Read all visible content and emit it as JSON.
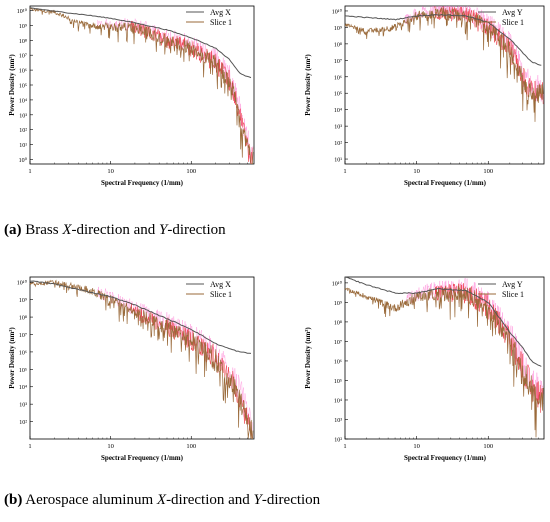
{
  "colors": {
    "avg": "#555555",
    "slice": "#9a6a3a",
    "noise": "#e8202a",
    "pink": "#ff66cc"
  },
  "panels": [
    {
      "id": "a-x",
      "ylabel": "Power Density (nm³)",
      "xlabel": "Spectral Frequency (1/mm)",
      "legend": [
        "Avg X",
        "Slice 1"
      ],
      "yticks": [
        "10⁰",
        "10¹",
        "10²",
        "10³",
        "10⁴",
        "10⁵",
        "10⁶",
        "10⁷",
        "10⁸",
        "10⁹",
        "10¹⁰"
      ],
      "xticks": [
        "1",
        "10",
        "100"
      ]
    },
    {
      "id": "a-y",
      "ylabel": "Power Density (nm³)",
      "xlabel": "Spectral Frequency (1/mm)",
      "legend": [
        "Avg Y",
        "Slice 1"
      ],
      "yticks": [
        "10¹",
        "10²",
        "10³",
        "10⁴",
        "10⁵",
        "10⁶",
        "10⁷",
        "10⁸",
        "10⁹",
        "10¹⁰"
      ],
      "xticks": [
        "1",
        "10",
        "100"
      ]
    },
    {
      "id": "b-x",
      "ylabel": "Power Density (nm³)",
      "xlabel": "Spectral Frequency (1/mm)",
      "legend": [
        "Avg X",
        "Slice 1"
      ],
      "yticks": [
        "10²",
        "10³",
        "10⁴",
        "10⁵",
        "10⁶",
        "10⁷",
        "10⁸",
        "10⁹",
        "10¹⁰"
      ],
      "xticks": [
        "1",
        "10",
        "100"
      ]
    },
    {
      "id": "b-y",
      "ylabel": "Power Density (nm³)",
      "xlabel": "Spectral Frequency (1/mm)",
      "legend": [
        "Avg Y",
        "Slice 1"
      ],
      "yticks": [
        "10²",
        "10³",
        "10⁴",
        "10⁵",
        "10⁶",
        "10⁷",
        "10⁸",
        "10⁹",
        "10¹⁰"
      ],
      "xticks": [
        "1",
        "10",
        "100"
      ]
    }
  ],
  "captions": {
    "a": {
      "label": "(a)",
      "text1": " Brass ",
      "x": "X",
      "text2": "-direction and ",
      "y": "Y",
      "text3": "-direction"
    },
    "b": {
      "label": "(b)",
      "text1": " Aerospace aluminum ",
      "x": "X",
      "text2": "-direction and ",
      "y": "Y",
      "text3": "-direction"
    }
  },
  "chart_data": [
    {
      "type": "line",
      "xscale": "log",
      "yscale": "log",
      "xlim": [
        1,
        600
      ],
      "ylim": [
        0.5,
        20000000000.0
      ],
      "xlabel": "Spectral Frequency (1/mm)",
      "ylabel": "Power Density (nm³)",
      "legend_position": "top-right",
      "series": [
        {
          "name": "Avg X",
          "x": [
            1,
            2,
            5,
            10,
            20,
            50,
            100,
            200,
            300,
            400,
            550
          ],
          "y": [
            15000000000.0,
            9000000000.0,
            5000000000.0,
            3000000000.0,
            1500000000.0,
            500000000.0,
            150000000.0,
            30000000.0,
            5000000.0,
            600000.0,
            300000.0
          ]
        },
        {
          "name": "Slice 1",
          "x": [
            1,
            2,
            5,
            10,
            20,
            50,
            100,
            200,
            300,
            400,
            550
          ],
          "y": [
            12000000000.0,
            8000000000.0,
            1000000000.0,
            800000000.0,
            800000000.0,
            100000000.0,
            30000000.0,
            3000000.0,
            200000.0,
            1000.0,
            1
          ]
        }
      ]
    },
    {
      "type": "line",
      "xscale": "log",
      "yscale": "log",
      "xlim": [
        1,
        600
      ],
      "ylim": [
        5,
        20000000000.0
      ],
      "xlabel": "Spectral Frequency (1/mm)",
      "ylabel": "Power Density (nm³)",
      "legend_position": "top-right",
      "series": [
        {
          "name": "Avg Y",
          "x": [
            1,
            2,
            5,
            10,
            20,
            50,
            100,
            200,
            300,
            400,
            550
          ],
          "y": [
            5000000000.0,
            4000000000.0,
            3000000000.0,
            5000000000.0,
            6000000000.0,
            5000000000.0,
            2000000000.0,
            200000000.0,
            30000000.0,
            8000000.0,
            5000000.0
          ]
        },
        {
          "name": "Slice 1",
          "x": [
            1,
            2,
            5,
            10,
            20,
            50,
            100,
            200,
            300,
            400,
            550
          ],
          "y": [
            1500000000.0,
            600000000.0,
            1000000000.0,
            5000000000.0,
            8000000000.0,
            5000000000.0,
            1000000000.0,
            50000000.0,
            1000000.0,
            100000.0,
            100000.0
          ]
        }
      ]
    },
    {
      "type": "line",
      "xscale": "log",
      "yscale": "log",
      "xlim": [
        1,
        600
      ],
      "ylim": [
        10,
        20000000000.0
      ],
      "xlabel": "Spectral Frequency (1/mm)",
      "ylabel": "Power Density (nm³)",
      "legend_position": "top-right",
      "series": [
        {
          "name": "Avg X",
          "x": [
            1,
            2,
            5,
            10,
            20,
            50,
            100,
            200,
            300,
            400,
            550
          ],
          "y": [
            12000000000.0,
            8000000000.0,
            3000000000.0,
            1500000000.0,
            500000000.0,
            80000000.0,
            20000000.0,
            3000000.0,
            1500000.0,
            1000000.0,
            800000.0
          ]
        },
        {
          "name": "Slice 1",
          "x": [
            1,
            2,
            5,
            10,
            20,
            50,
            100,
            200,
            300,
            400,
            550
          ],
          "y": [
            8000000000.0,
            10000000000.0,
            4000000000.0,
            1000000000.0,
            200000000.0,
            30000000.0,
            5000000.0,
            500000.0,
            30000.0,
            3000.0,
            30
          ]
        }
      ]
    },
    {
      "type": "line",
      "xscale": "log",
      "yscale": "log",
      "xlim": [
        1,
        600
      ],
      "ylim": [
        100,
        20000000000.0
      ],
      "xlabel": "Spectral Frequency (1/mm)",
      "ylabel": "Power Density (nm³)",
      "legend_position": "top-right",
      "series": [
        {
          "name": "Avg Y",
          "x": [
            1,
            2,
            5,
            10,
            20,
            50,
            100,
            200,
            300,
            400,
            550
          ],
          "y": [
            20000000000.0,
            8000000000.0,
            3000000000.0,
            3000000000.0,
            5000000000.0,
            4000000000.0,
            1000000000.0,
            30000000.0,
            5000000.0,
            1000000.0,
            500000.0
          ]
        },
        {
          "name": "Slice 1",
          "x": [
            1,
            2,
            5,
            10,
            20,
            50,
            100,
            200,
            300,
            400,
            550
          ],
          "y": [
            5000000000.0,
            2000000000.0,
            500000000.0,
            2000000000.0,
            3000000000.0,
            3000000000.0,
            600000000.0,
            10000000.0,
            500000.0,
            50000.0,
            10000.0
          ]
        }
      ]
    }
  ]
}
